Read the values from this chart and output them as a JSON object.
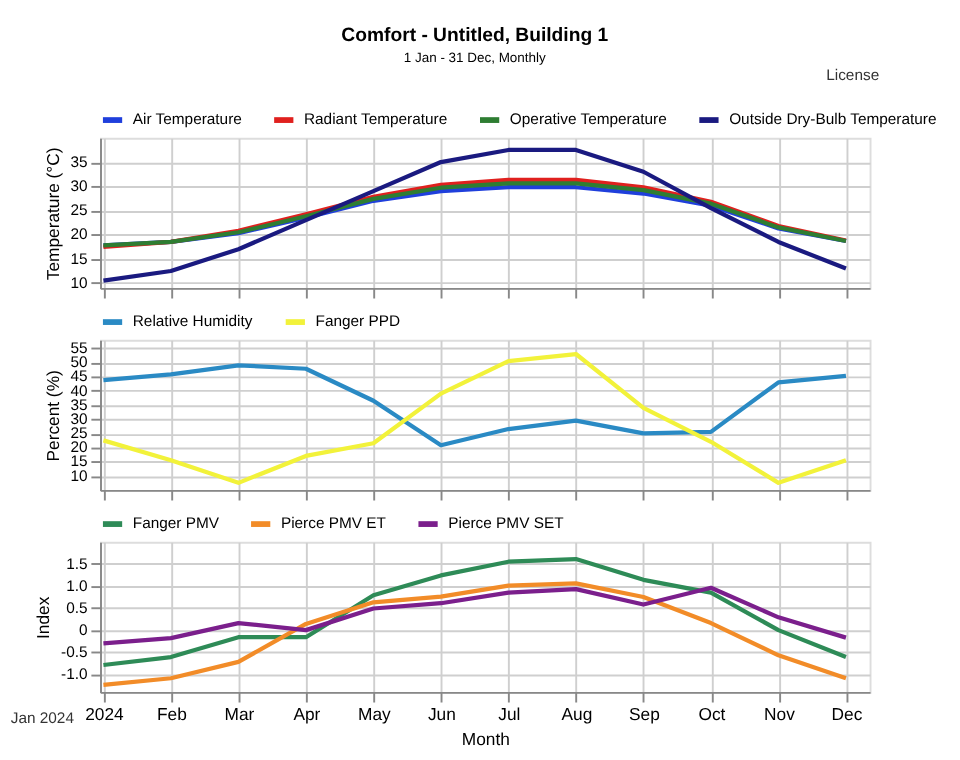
{
  "chart_data": [
    {
      "type": "line",
      "title": "Comfort - Untitled, Building 1",
      "subtitle": "1 Jan - 31 Dec, Monthly",
      "ylabel": "Temperature (°C)",
      "annotations": [
        "License"
      ],
      "ylim": [
        9,
        40
      ],
      "yticks": [
        10,
        15,
        20,
        25,
        30,
        35
      ],
      "grid": true,
      "legend": "top left",
      "tick_labels": "y",
      "line_style": "solid",
      "marker": "none",
      "series": [
        {
          "name": "Air Temperature",
          "color": "#1f3fdc",
          "values": [
            17.8,
            18.5,
            20.3,
            23.5,
            27,
            29,
            29.8,
            29.8,
            28.5,
            26,
            21.3,
            18.7
          ]
        },
        {
          "name": "Radiant Temperature",
          "color": "#e0201e",
          "values": [
            17.5,
            18.5,
            20.8,
            24.2,
            27.8,
            30.3,
            31.3,
            31.3,
            29.8,
            26.8,
            21.8,
            18.8
          ]
        },
        {
          "name": "Operative Temperature",
          "color": "#2e7d32",
          "values": [
            17.8,
            18.5,
            20.5,
            23.8,
            27.4,
            29.7,
            30.6,
            30.6,
            29.2,
            26.4,
            21.5,
            18.7
          ]
        },
        {
          "name": "Outside Dry-Bulb Temperature",
          "color": "#1a1a80",
          "values": [
            10.5,
            12.5,
            17,
            23,
            29,
            35,
            37.5,
            37.5,
            33,
            25.5,
            18.5,
            13
          ]
        }
      ]
    },
    {
      "type": "line",
      "ylabel": "Percent (%)",
      "ylim": [
        5,
        58
      ],
      "yticks": [
        10,
        15,
        20,
        25,
        30,
        35,
        40,
        45,
        50,
        55
      ],
      "grid": true,
      "legend": "top left",
      "tick_labels": "y",
      "line_style": "solid",
      "marker": "none",
      "series": [
        {
          "name": "Relative Humidity",
          "color": "#2a8ac4",
          "values": [
            43.8,
            45.8,
            49,
            47.8,
            36.5,
            20.8,
            26.5,
            29.5,
            25,
            25.5,
            43,
            45.3
          ]
        },
        {
          "name": "Fanger PPD",
          "color": "#f2f23a",
          "values": [
            22.5,
            15.5,
            7.5,
            17,
            21.5,
            39,
            50.5,
            53,
            34,
            22,
            7.5,
            15.5
          ]
        }
      ]
    },
    {
      "type": "line",
      "ylabel": "Index",
      "xlabel": "Month",
      "annotations": [
        "Jan 2024"
      ],
      "categories": [
        "2024",
        "Feb",
        "Mar",
        "Apr",
        "May",
        "Jun",
        "Jul",
        "Aug",
        "Sep",
        "Oct",
        "Nov",
        "Dec"
      ],
      "ylim": [
        -1.4,
        2
      ],
      "yticks": [
        {
          "value": -1,
          "label": "-1.0"
        },
        {
          "value": -0.5,
          "label": "-0.5"
        },
        {
          "value": 0,
          "label": "0"
        },
        {
          "value": 0.5,
          "label": "0.5"
        },
        {
          "value": 1,
          "label": "1.0"
        },
        {
          "value": 1.5,
          "label": "1.5"
        }
      ],
      "grid": true,
      "legend": "top left",
      "line_style": "solid",
      "marker": "none",
      "series": [
        {
          "name": "Fanger PMV",
          "color": "#2e8b57",
          "values": [
            -0.79,
            -0.61,
            -0.16,
            -0.16,
            0.79,
            1.24,
            1.55,
            1.61,
            1.14,
            0.85,
            0,
            -0.61
          ]
        },
        {
          "name": "Pierce PMV ET",
          "color": "#f28c28",
          "values": [
            -1.24,
            -1.09,
            -0.72,
            0.14,
            0.63,
            0.76,
            1.01,
            1.06,
            0.75,
            0.16,
            -0.57,
            -1.09
          ]
        },
        {
          "name": "Pierce PMV SET",
          "color": "#7b1f8c",
          "values": [
            -0.3,
            -0.18,
            0.16,
            0,
            0.49,
            0.61,
            0.85,
            0.93,
            0.58,
            0.96,
            0.29,
            -0.17
          ]
        }
      ]
    }
  ]
}
